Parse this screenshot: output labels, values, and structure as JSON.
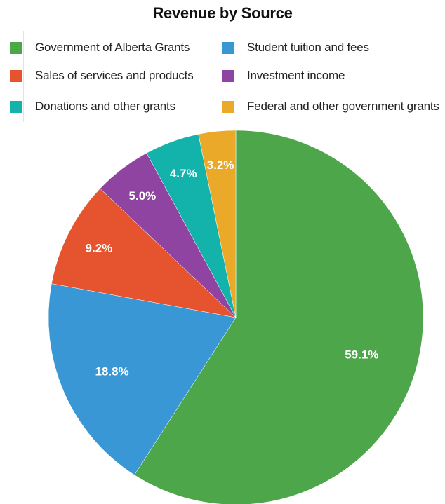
{
  "chart_data": {
    "type": "pie",
    "title": "Revenue by Source",
    "legend_position": "top",
    "slices": [
      {
        "name": "Government of Alberta Grants",
        "value": 59.1,
        "label": "59.1%",
        "color": "#4ea64b"
      },
      {
        "name": "Student tuition and fees",
        "value": 18.8,
        "label": "18.8%",
        "color": "#3a97d6"
      },
      {
        "name": "Sales of services and products",
        "value": 9.2,
        "label": "9.2%",
        "color": "#e6532f"
      },
      {
        "name": "Investment income",
        "value": 5.0,
        "label": "5.0%",
        "color": "#8e44a0"
      },
      {
        "name": "Donations and other grants",
        "value": 4.7,
        "label": "4.7%",
        "color": "#13b3ac"
      },
      {
        "name": "Federal and other government grants",
        "value": 3.2,
        "label": "3.2%",
        "color": "#eaa929"
      }
    ]
  }
}
